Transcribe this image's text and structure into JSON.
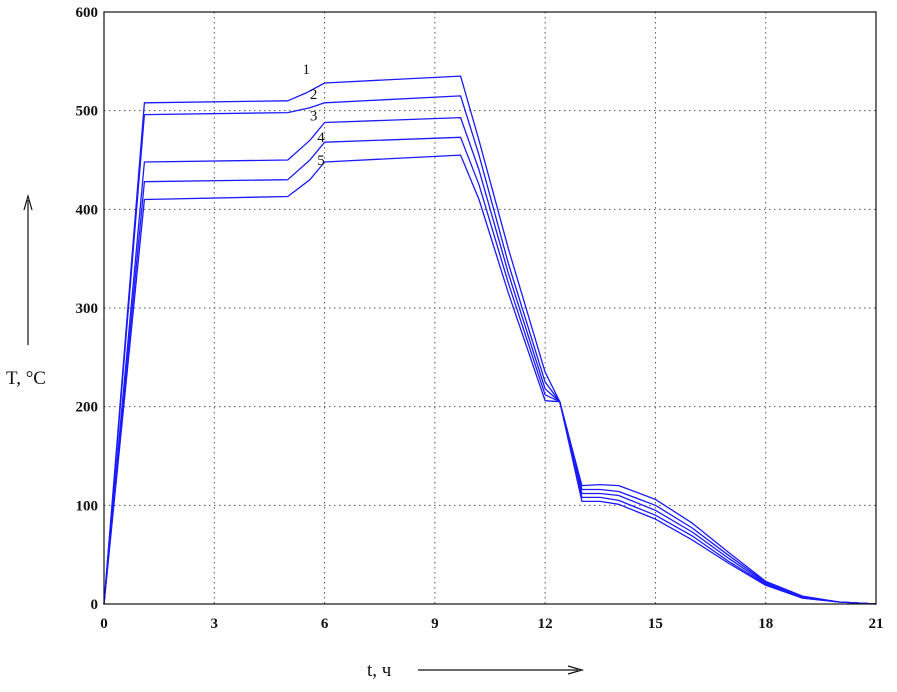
{
  "chart_data": {
    "type": "line",
    "xlabel": "t, ч",
    "ylabel": "T, °C",
    "xlim": [
      0,
      21
    ],
    "ylim": [
      0,
      600
    ],
    "xticks": [
      0,
      3,
      6,
      9,
      12,
      15,
      18,
      21
    ],
    "yticks": [
      0,
      100,
      200,
      300,
      400,
      500,
      600
    ],
    "grid": true,
    "line_color": "#1a1aff",
    "series": [
      {
        "name": "1",
        "x": [
          0,
          1.1,
          5.0,
          5.5,
          6.0,
          9.7,
          10.2,
          11.0,
          12.0,
          12.4,
          13.0,
          13.5,
          14.0,
          15.0,
          16.0,
          17.0,
          18.0,
          19.0,
          20.0,
          21.0
        ],
        "y": [
          0,
          508,
          510,
          518,
          528,
          535,
          470,
          360,
          235,
          205,
          120,
          121,
          120,
          106,
          82,
          52,
          23,
          8,
          2,
          0
        ]
      },
      {
        "name": "2",
        "x": [
          0,
          1.1,
          5.0,
          5.6,
          6.0,
          9.7,
          10.2,
          11.0,
          12.0,
          12.4,
          13.0,
          13.5,
          14.0,
          15.0,
          16.0,
          17.0,
          18.0,
          19.0,
          20.0,
          21.0
        ],
        "y": [
          0,
          496,
          498,
          503,
          508,
          515,
          455,
          345,
          225,
          205,
          116,
          116,
          114,
          100,
          77,
          49,
          22,
          7,
          2,
          0
        ]
      },
      {
        "name": "3",
        "x": [
          0,
          1.1,
          5.0,
          5.6,
          6.0,
          9.7,
          10.2,
          11.0,
          12.0,
          12.4,
          13.0,
          13.5,
          14.0,
          15.0,
          16.0,
          17.0,
          18.0,
          19.0,
          20.0,
          21.0
        ],
        "y": [
          0,
          448,
          450,
          470,
          488,
          493,
          440,
          335,
          218,
          205,
          112,
          112,
          110,
          95,
          73,
          46,
          21,
          7,
          2,
          0
        ]
      },
      {
        "name": "4",
        "x": [
          0,
          1.1,
          5.0,
          5.6,
          6.0,
          9.7,
          10.2,
          11.0,
          12.0,
          12.4,
          13.0,
          13.5,
          14.0,
          15.0,
          16.0,
          17.0,
          18.0,
          19.0,
          20.0,
          21.0
        ],
        "y": [
          0,
          428,
          430,
          450,
          468,
          473,
          425,
          325,
          212,
          205,
          108,
          108,
          105,
          90,
          69,
          43,
          20,
          6,
          2,
          0
        ]
      },
      {
        "name": "5",
        "x": [
          0,
          1.1,
          5.0,
          5.6,
          6.0,
          9.7,
          10.2,
          11.0,
          12.0,
          12.4,
          13.0,
          13.5,
          14.0,
          15.0,
          16.0,
          17.0,
          18.0,
          19.0,
          20.0,
          21.0
        ],
        "y": [
          0,
          410,
          413,
          430,
          448,
          455,
          410,
          315,
          206,
          205,
          104,
          104,
          101,
          86,
          65,
          41,
          19,
          6,
          2,
          0
        ]
      }
    ],
    "curve_labels": [
      {
        "text": "1",
        "x": 5.4,
        "y": 537
      },
      {
        "text": "2",
        "x": 5.6,
        "y": 512
      },
      {
        "text": "3",
        "x": 5.6,
        "y": 490
      },
      {
        "text": "4",
        "x": 5.8,
        "y": 468
      },
      {
        "text": "5",
        "x": 5.8,
        "y": 445
      }
    ]
  }
}
